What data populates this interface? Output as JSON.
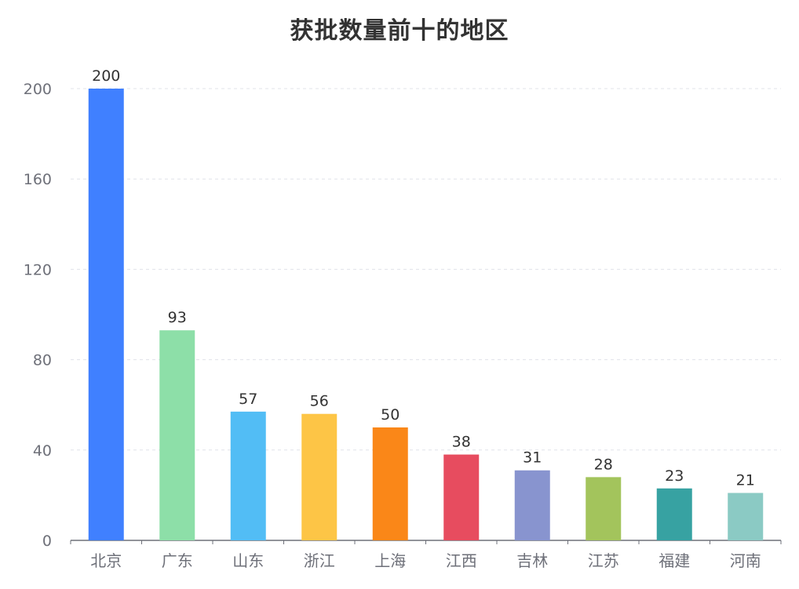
{
  "chart_data": {
    "type": "bar",
    "title": "获批数量前十的地区",
    "categories": [
      "北京",
      "广东",
      "山东",
      "浙江",
      "上海",
      "江西",
      "吉林",
      "江苏",
      "福建",
      "河南"
    ],
    "values": [
      200,
      93,
      57,
      56,
      50,
      38,
      31,
      28,
      23,
      21
    ],
    "colors": [
      "#4080ff",
      "#8ddfa8",
      "#52bdf5",
      "#fdc546",
      "#fa8718",
      "#e74c5f",
      "#8894cf",
      "#a3c45c",
      "#37a2a2",
      "#8bcac4"
    ],
    "yticks": [
      0,
      40,
      80,
      120,
      160,
      200
    ],
    "ylim": [
      0,
      200
    ],
    "xlabel": "",
    "ylabel": "",
    "grid": true,
    "data_labels": true
  }
}
